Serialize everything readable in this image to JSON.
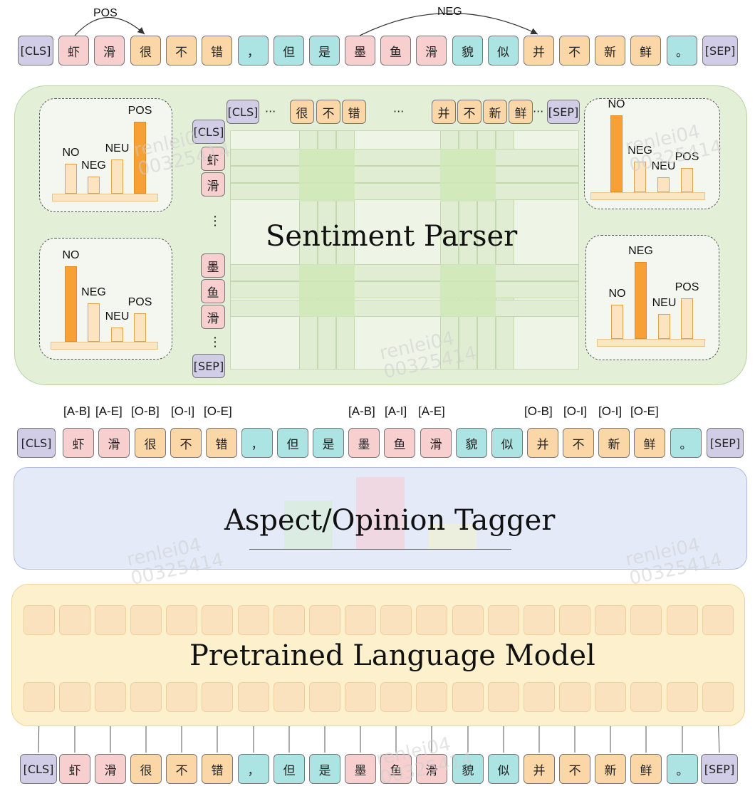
{
  "sentence": [
    "[CLS]",
    "虾",
    "滑",
    "很",
    "不",
    "错",
    "，",
    "但",
    "是",
    "墨",
    "鱼",
    "滑",
    "貌",
    "似",
    "并",
    "不",
    "新",
    "鲜",
    "。",
    "[SEP]"
  ],
  "token_types": [
    "cls",
    "asp",
    "asp",
    "op",
    "op",
    "op",
    "ot",
    "ot",
    "ot",
    "asp",
    "asp",
    "asp",
    "ot",
    "ot",
    "op",
    "op",
    "op",
    "op",
    "ot",
    "cls"
  ],
  "colors": {
    "cls": "#d2cde6",
    "aspect": "#f8cfcf",
    "opinion": "#fbd7a8",
    "other": "#ace3e3",
    "parser_bg": "#e3efd7",
    "tagger_bg": "#e4eaf8",
    "plm_bg": "#fdf0cc",
    "bar": "#fce4c0",
    "bar_highlight": "#f7a035"
  },
  "top_relations": [
    {
      "label": "POS"
    },
    {
      "label": "NEG"
    }
  ],
  "parser": {
    "title": "Sentiment Parser",
    "col_tokens": [
      "[CLS]",
      "很",
      "不",
      "错",
      "并",
      "不",
      "新",
      "鲜",
      "[SEP]"
    ],
    "col_ellipsis": [
      "···",
      "···",
      "···"
    ],
    "row_tokens": [
      "[CLS]",
      "虾",
      "滑",
      "墨",
      "鱼",
      "滑",
      "[SEP]"
    ],
    "row_ellipsis": [
      "⋮",
      "⋮"
    ],
    "bar_panels": [
      {
        "labels": [
          "NO",
          "NEG",
          "NEU",
          "POS"
        ],
        "values": [
          0.38,
          0.22,
          0.44,
          0.92
        ],
        "highlight": 3
      },
      {
        "labels": [
          "NO",
          "NEG",
          "NEU",
          "POS"
        ],
        "values": [
          0.95,
          0.48,
          0.18,
          0.36
        ],
        "highlight": 0
      },
      {
        "labels": [
          "NO",
          "NEG",
          "NEU",
          "POS"
        ],
        "values": [
          0.96,
          0.38,
          0.19,
          0.3
        ],
        "highlight": 0
      },
      {
        "labels": [
          "NO",
          "NEG",
          "NEU",
          "POS"
        ],
        "values": [
          0.44,
          0.98,
          0.32,
          0.52
        ],
        "highlight": 1
      }
    ]
  },
  "tagger": {
    "title": "Aspect/Opinion Tagger",
    "tags": [
      "[A-B]",
      "[A-E]",
      "[O-B]",
      "[O-I]",
      "[O-E]",
      "[A-B]",
      "[A-I]",
      "[A-E]",
      "[O-B]",
      "[O-I]",
      "[O-I]",
      "[O-E]"
    ]
  },
  "plm": {
    "title": "Pretrained Language Model"
  },
  "watermark": [
    "renlei04",
    "00325414"
  ]
}
